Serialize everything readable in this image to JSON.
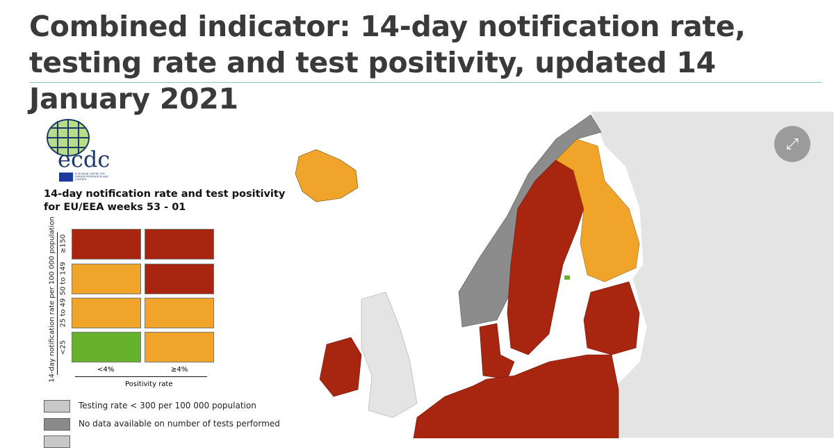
{
  "page": {
    "title": "Combined indicator: 14-day notification rate, testing rate and test positivity, updated 14 January 2021"
  },
  "logo": {
    "text": "ecdc",
    "subtitle": "EUROPEAN CENTRE FOR DISEASE PREVENTION AND CONTROL"
  },
  "legend": {
    "title_line1": "14-day notification rate and test positivity",
    "title_line2": "for EU/EEA weeks 53 - 01",
    "y_axis_label": "14-day notification rate per 100 000 population",
    "x_axis_label": "Positivity rate",
    "rows": [
      "≥150",
      "50 to 149",
      "25 to 49",
      "<25"
    ],
    "cols": [
      "<4%",
      "≥4%"
    ],
    "colors": {
      "red": "#a8260f",
      "orange": "#f0a52a",
      "green": "#66b22c",
      "light_gray": "#c8c8c8",
      "dark_gray": "#8a8a8a"
    },
    "extra": [
      {
        "label": "Testing rate < 300 per 100 000 population"
      },
      {
        "label": "No data available on number of tests performed"
      }
    ]
  },
  "controls": {
    "expand_icon": "expand-icon",
    "expand_glyph": "⤢"
  }
}
